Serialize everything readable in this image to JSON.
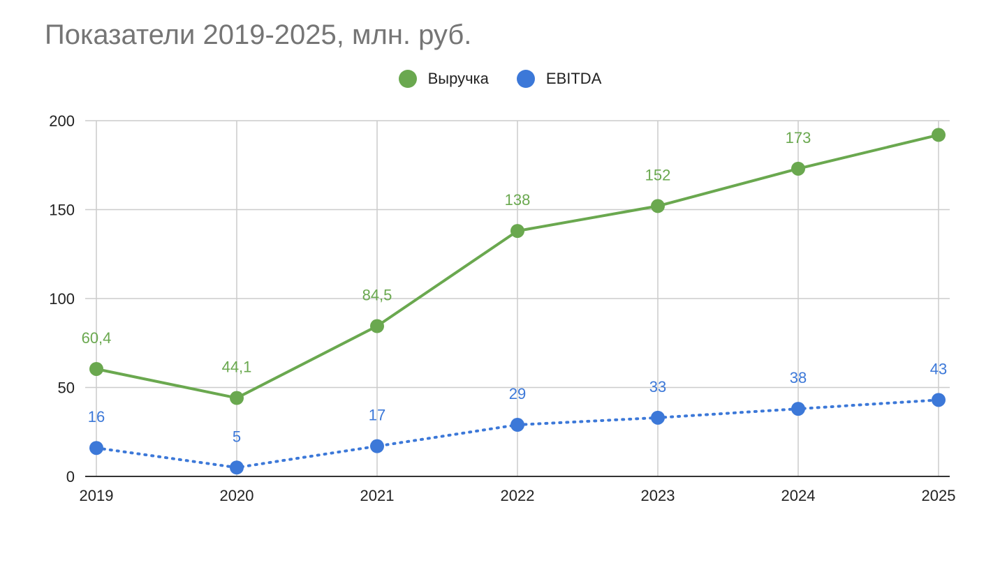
{
  "chart_data": {
    "type": "line",
    "title": "Показатели 2019-2025, млн. руб.",
    "xlabel": "",
    "ylabel": "",
    "categories": [
      "2019",
      "2020",
      "2021",
      "2022",
      "2023",
      "2024",
      "2025"
    ],
    "ylim": [
      0,
      200
    ],
    "yticks": [
      "0",
      "50",
      "100",
      "150",
      "200"
    ],
    "grid": true,
    "legend_position": "top-center",
    "series": [
      {
        "name": "Выручка",
        "color": "#6aa84f",
        "line_style": "solid",
        "values": [
          60.4,
          44.1,
          84.5,
          138,
          152,
          173,
          192
        ],
        "labels": [
          "60,4",
          "44,1",
          "84,5",
          "138",
          "152",
          "173",
          ""
        ]
      },
      {
        "name": "EBITDA",
        "color": "#3c78d8",
        "line_style": "dotted",
        "values": [
          16,
          5,
          17,
          29,
          33,
          38,
          43
        ],
        "labels": [
          "16",
          "5",
          "17",
          "29",
          "33",
          "38",
          "43"
        ]
      }
    ]
  }
}
